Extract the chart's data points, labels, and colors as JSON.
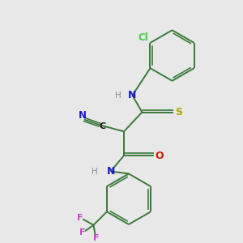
{
  "bg": "#e8e8e8",
  "bond_color": "#3a7a3a",
  "N_color": "#1a1acc",
  "O_color": "#cc1a00",
  "S_color": "#aaaa00",
  "Cl_color": "#44cc44",
  "F_color": "#cc44cc",
  "C_color": "#111111",
  "H_color": "#888888",
  "lw": 1.4,
  "figsize": [
    3.0,
    3.0
  ],
  "dpi": 100,
  "xlim": [
    0,
    10
  ],
  "ylim": [
    0,
    10
  ]
}
